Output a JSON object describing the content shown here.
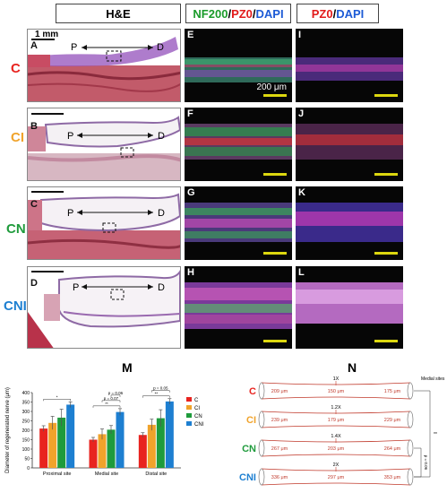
{
  "headers": {
    "he": "H&E",
    "nf200": "NF200",
    "pz0": "PZ0",
    "dapi": "DAPI",
    "slash": "/"
  },
  "rows": [
    {
      "label": "C",
      "color": "#e8231f"
    },
    {
      "label": "CI",
      "color": "#f0a32b"
    },
    {
      "label": "CN",
      "color": "#1f9b3c"
    },
    {
      "label": "CNI",
      "color": "#1d7fd1"
    }
  ],
  "he_panels": [
    "A",
    "B",
    "C",
    "D"
  ],
  "nf_panels": [
    "E",
    "F",
    "G",
    "H"
  ],
  "pz_panels": [
    "I",
    "J",
    "K",
    "L"
  ],
  "he_annotations": {
    "proximal": "P",
    "distal": "D",
    "scale": "1 mm"
  },
  "fluor_scale": "200 μm",
  "panel_m": {
    "letter": "M",
    "chart_data": {
      "type": "bar",
      "categories": [
        "Proximal site",
        "Medial site",
        "Distal site"
      ],
      "ylabel": "Diameter of regenerated nerve (μm)",
      "ylim": [
        0,
        400
      ],
      "yticks": [
        0,
        50,
        100,
        150,
        200,
        250,
        300,
        350,
        400
      ],
      "legend_position": "right",
      "series": [
        {
          "name": "C",
          "color": "#e8231f",
          "values": [
            209,
            150,
            175
          ],
          "errors": [
            15,
            12,
            12
          ]
        },
        {
          "name": "CI",
          "color": "#f0a32b",
          "values": [
            239,
            179,
            229
          ],
          "errors": [
            35,
            28,
            30
          ]
        },
        {
          "name": "CN",
          "color": "#1f9b3c",
          "values": [
            267,
            203,
            264
          ],
          "errors": [
            45,
            22,
            45
          ]
        },
        {
          "name": "CNI",
          "color": "#1d7fd1",
          "values": [
            336,
            297,
            353
          ],
          "errors": [
            15,
            18,
            15
          ]
        }
      ],
      "annotations": {
        "proximal": [
          "*"
        ],
        "medial": [
          "p = 0.06",
          "p = 0.07",
          "**"
        ],
        "distal": [
          "p = 0.05",
          "**"
        ]
      }
    }
  },
  "panel_n": {
    "letter": "N",
    "medial_sites": "Medial sites",
    "rows": [
      {
        "label": "C",
        "ratio": "1X",
        "left": "209 μm",
        "mid": "150 μm",
        "right": "175 μm"
      },
      {
        "label": "CI",
        "ratio": "1.2X",
        "left": "239 μm",
        "mid": "179 μm",
        "right": "229 μm"
      },
      {
        "label": "CN",
        "ratio": "1.4X",
        "left": "267 μm",
        "mid": "203 μm",
        "right": "264 μm"
      },
      {
        "label": "CNI",
        "ratio": "2X",
        "left": "336 μm",
        "mid": "297 μm",
        "right": "353 μm"
      }
    ],
    "sig_outer": "**",
    "sig_inner": "p = 0.06"
  }
}
